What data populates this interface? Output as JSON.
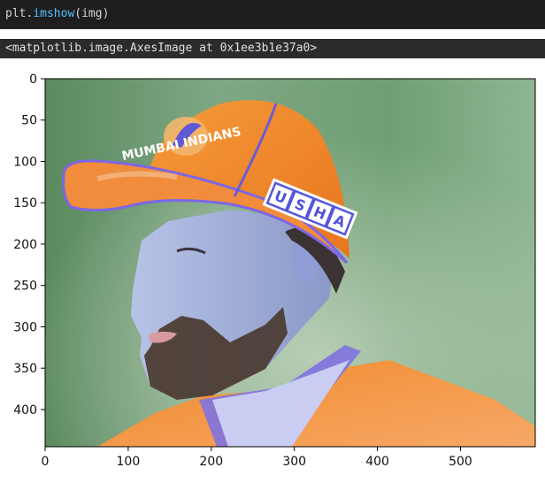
{
  "cell": {
    "code": {
      "object": "plt",
      "dot": ".",
      "method": "imshow",
      "open": "(",
      "arg": "img",
      "close": ")"
    },
    "output_text": "<matplotlib.image.AxesImage at 0x1ee3b1e37a0>"
  },
  "chart_data": {
    "type": "image",
    "xlim": [
      0,
      590
    ],
    "ylim": [
      445,
      0
    ],
    "x_ticks": [
      {
        "value": 0,
        "label": "0"
      },
      {
        "value": 100,
        "label": "100"
      },
      {
        "value": 200,
        "label": "200"
      },
      {
        "value": 300,
        "label": "300"
      },
      {
        "value": 400,
        "label": "400"
      },
      {
        "value": 500,
        "label": "500"
      }
    ],
    "y_ticks": [
      {
        "value": 0,
        "label": "0"
      },
      {
        "value": 50,
        "label": "50"
      },
      {
        "value": 100,
        "label": "100"
      },
      {
        "value": 150,
        "label": "150"
      },
      {
        "value": 200,
        "label": "200"
      },
      {
        "value": 250,
        "label": "250"
      },
      {
        "value": 300,
        "label": "300"
      },
      {
        "value": 350,
        "label": "350"
      },
      {
        "value": 400,
        "label": "400"
      }
    ],
    "image_text": {
      "cap_logo": "MUMBAI INDIANS",
      "cap_sponsor": [
        "U",
        "S",
        "H",
        "A"
      ]
    }
  }
}
